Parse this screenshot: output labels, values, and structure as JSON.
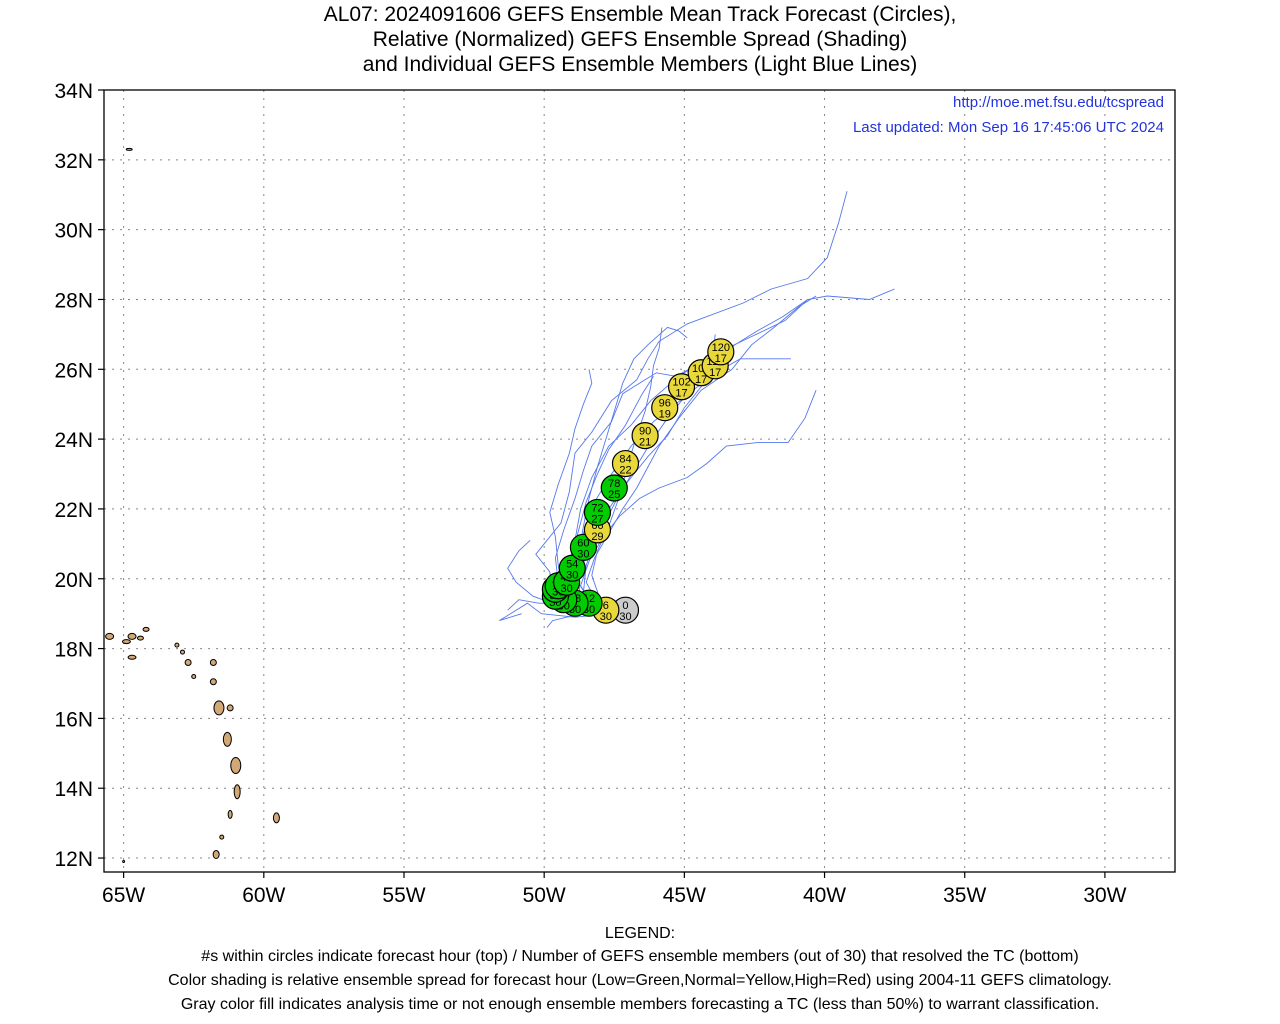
{
  "title": {
    "line1": "AL07: 2024091606 GEFS Ensemble Mean Track Forecast (Circles),",
    "line2": "Relative (Normalized) GEFS Ensemble Spread (Shading)",
    "line3": "and Individual GEFS Ensemble Members (Light Blue Lines)"
  },
  "source": {
    "url": "http://moe.met.fsu.edu/tcspread",
    "updated": "Last updated: Mon Sep 16 17:45:06 UTC 2024"
  },
  "axes": {
    "lon_range": [
      -65.7,
      -27.5
    ],
    "lat_range": [
      11.6,
      34.0
    ],
    "lon_ticks": [
      {
        "value": -65,
        "label": "65W"
      },
      {
        "value": -60,
        "label": "60W"
      },
      {
        "value": -55,
        "label": "55W"
      },
      {
        "value": -50,
        "label": "50W"
      },
      {
        "value": -45,
        "label": "45W"
      },
      {
        "value": -40,
        "label": "40W"
      },
      {
        "value": -35,
        "label": "35W"
      },
      {
        "value": -30,
        "label": "30W"
      }
    ],
    "lat_ticks": [
      {
        "value": 34,
        "label": "34N"
      },
      {
        "value": 32,
        "label": "32N"
      },
      {
        "value": 30,
        "label": "30N"
      },
      {
        "value": 28,
        "label": "28N"
      },
      {
        "value": 26,
        "label": "26N"
      },
      {
        "value": 24,
        "label": "24N"
      },
      {
        "value": 22,
        "label": "22N"
      },
      {
        "value": 20,
        "label": "20N"
      },
      {
        "value": 18,
        "label": "18N"
      },
      {
        "value": 16,
        "label": "16N"
      },
      {
        "value": 14,
        "label": "14N"
      },
      {
        "value": 12,
        "label": "12N"
      }
    ],
    "grid": "dotted"
  },
  "colors": {
    "low": "#00cc00",
    "normal": "#e8d83a",
    "gray": "#cccccc",
    "member_line": "#5577ee",
    "land": "#d2a877",
    "url_text": "#2233dd"
  },
  "mean_track": [
    {
      "hour": "0",
      "members": "30",
      "lon": -47.1,
      "lat": 19.1,
      "spread": "gray"
    },
    {
      "hour": "6",
      "members": "30",
      "lon": -47.8,
      "lat": 19.1,
      "spread": "normal"
    },
    {
      "hour": "12",
      "members": "30",
      "lon": -48.4,
      "lat": 19.3,
      "spread": "low"
    },
    {
      "hour": "18",
      "members": "30",
      "lon": -48.9,
      "lat": 19.3,
      "spread": "low"
    },
    {
      "hour": "24",
      "members": "30",
      "lon": -49.3,
      "lat": 19.4,
      "spread": "low"
    },
    {
      "hour": "30",
      "members": "30",
      "lon": -49.6,
      "lat": 19.5,
      "spread": "low"
    },
    {
      "hour": "36",
      "members": "30",
      "lon": -49.6,
      "lat": 19.7,
      "spread": "low"
    },
    {
      "hour": "42",
      "members": "30",
      "lon": -49.5,
      "lat": 19.8,
      "spread": "low"
    },
    {
      "hour": "48",
      "members": "30",
      "lon": -49.2,
      "lat": 19.9,
      "spread": "low"
    },
    {
      "hour": "54",
      "members": "30",
      "lon": -49.0,
      "lat": 20.3,
      "spread": "low"
    },
    {
      "hour": "60",
      "members": "30",
      "lon": -48.6,
      "lat": 20.9,
      "spread": "low"
    },
    {
      "hour": "66",
      "members": "29",
      "lon": -48.1,
      "lat": 21.4,
      "spread": "normal"
    },
    {
      "hour": "72",
      "members": "27",
      "lon": -48.1,
      "lat": 21.9,
      "spread": "low"
    },
    {
      "hour": "78",
      "members": "25",
      "lon": -47.5,
      "lat": 22.6,
      "spread": "low"
    },
    {
      "hour": "84",
      "members": "22",
      "lon": -47.1,
      "lat": 23.3,
      "spread": "normal"
    },
    {
      "hour": "90",
      "members": "21",
      "lon": -46.4,
      "lat": 24.1,
      "spread": "normal"
    },
    {
      "hour": "96",
      "members": "19",
      "lon": -45.7,
      "lat": 24.9,
      "spread": "normal"
    },
    {
      "hour": "102",
      "members": "17",
      "lon": -45.1,
      "lat": 25.5,
      "spread": "normal"
    },
    {
      "hour": "108",
      "members": "17",
      "lon": -44.4,
      "lat": 25.9,
      "spread": "normal"
    },
    {
      "hour": "114",
      "members": "17",
      "lon": -43.9,
      "lat": 26.1,
      "spread": "normal"
    },
    {
      "hour": "120",
      "members": "17",
      "lon": -43.7,
      "lat": 26.5,
      "spread": "normal"
    }
  ],
  "members": [
    [
      [
        -47.6,
        19.0
      ],
      [
        -48.8,
        19.0
      ],
      [
        -49.7,
        19.5
      ],
      [
        -49.8,
        20.2
      ],
      [
        -50.3,
        20.7
      ],
      [
        -50.0,
        21.0
      ],
      [
        -49.4,
        21.6
      ],
      [
        -49.1,
        22.5
      ],
      [
        -48.9,
        23.6
      ],
      [
        -48.3,
        24.2
      ],
      [
        -47.6,
        25.1
      ],
      [
        -46.7,
        25.7
      ],
      [
        -46.3,
        26.3
      ],
      [
        -45.9,
        26.8
      ],
      [
        -44.9,
        27.3
      ],
      [
        -42.9,
        27.9
      ],
      [
        -41.9,
        28.3
      ],
      [
        -40.6,
        28.6
      ],
      [
        -39.9,
        29.2
      ],
      [
        -39.5,
        30.2
      ],
      [
        -39.2,
        31.1
      ]
    ],
    [
      [
        -47.6,
        19.0
      ],
      [
        -48.6,
        19.1
      ],
      [
        -49.3,
        19.4
      ],
      [
        -49.2,
        20.2
      ],
      [
        -48.9,
        21.1
      ],
      [
        -48.7,
        22.0
      ],
      [
        -48.3,
        22.9
      ],
      [
        -47.7,
        23.8
      ],
      [
        -46.9,
        24.4
      ],
      [
        -46.2,
        25.1
      ],
      [
        -45.2,
        25.8
      ],
      [
        -44.0,
        26.4
      ],
      [
        -42.7,
        26.9
      ],
      [
        -41.4,
        27.4
      ],
      [
        -40.6,
        28.0
      ],
      [
        -39.9,
        28.1
      ],
      [
        -38.4,
        28.0
      ],
      [
        -37.5,
        28.3
      ]
    ],
    [
      [
        -47.6,
        19.0
      ],
      [
        -48.4,
        19.2
      ],
      [
        -48.9,
        19.7
      ],
      [
        -48.9,
        20.4
      ],
      [
        -48.6,
        21.3
      ],
      [
        -48.2,
        22.2
      ],
      [
        -47.6,
        23.0
      ],
      [
        -46.9,
        23.8
      ],
      [
        -46.1,
        24.5
      ],
      [
        -45.0,
        25.2
      ],
      [
        -43.9,
        25.9
      ],
      [
        -43.0,
        26.3
      ],
      [
        -41.9,
        26.3
      ],
      [
        -41.2,
        26.3
      ]
    ],
    [
      [
        -47.6,
        19.0
      ],
      [
        -48.2,
        19.2
      ],
      [
        -48.7,
        19.8
      ],
      [
        -48.4,
        20.5
      ],
      [
        -47.9,
        21.2
      ],
      [
        -47.3,
        21.8
      ],
      [
        -46.6,
        22.3
      ],
      [
        -45.9,
        22.6
      ],
      [
        -44.9,
        22.9
      ],
      [
        -44.2,
        23.3
      ],
      [
        -43.5,
        23.8
      ],
      [
        -42.4,
        23.9
      ],
      [
        -41.3,
        23.9
      ],
      [
        -40.7,
        24.6
      ],
      [
        -40.3,
        25.4
      ]
    ],
    [
      [
        -47.6,
        19.0
      ],
      [
        -48.1,
        19.3
      ],
      [
        -48.5,
        19.9
      ],
      [
        -48.2,
        20.6
      ],
      [
        -47.7,
        21.3
      ],
      [
        -47.2,
        22.0
      ],
      [
        -46.7,
        22.6
      ],
      [
        -46.3,
        23.2
      ],
      [
        -45.9,
        23.8
      ],
      [
        -45.2,
        24.6
      ],
      [
        -44.4,
        25.4
      ],
      [
        -43.3,
        26.0
      ],
      [
        -42.6,
        26.7
      ],
      [
        -41.8,
        27.2
      ],
      [
        -40.9,
        27.8
      ],
      [
        -40.3,
        28.1
      ]
    ],
    [
      [
        -47.6,
        19.0
      ],
      [
        -48.4,
        19.1
      ],
      [
        -49.1,
        19.3
      ],
      [
        -49.5,
        19.9
      ],
      [
        -49.6,
        20.6
      ],
      [
        -49.3,
        21.4
      ],
      [
        -48.9,
        22.3
      ],
      [
        -48.6,
        23.1
      ],
      [
        -48.3,
        23.8
      ],
      [
        -47.6,
        24.5
      ],
      [
        -47.2,
        25.3
      ],
      [
        -46.6,
        25.6
      ],
      [
        -46.0,
        25.9
      ],
      [
        -45.3,
        25.8
      ],
      [
        -44.6,
        26.1
      ]
    ],
    [
      [
        -47.6,
        19.0
      ],
      [
        -48.9,
        18.9
      ],
      [
        -50.1,
        19.0
      ],
      [
        -50.6,
        19.3
      ],
      [
        -51.2,
        19.0
      ],
      [
        -51.6,
        18.8
      ],
      [
        -50.8,
        19.0
      ]
    ],
    [
      [
        -47.6,
        19.0
      ],
      [
        -48.4,
        19.0
      ],
      [
        -49.0,
        19.1
      ],
      [
        -49.6,
        19.3
      ],
      [
        -50.2,
        19.3
      ],
      [
        -50.9,
        19.4
      ],
      [
        -51.3,
        19.1
      ]
    ],
    [
      [
        -47.6,
        19.0
      ],
      [
        -48.3,
        19.3
      ],
      [
        -48.8,
        19.9
      ],
      [
        -48.8,
        20.6
      ],
      [
        -48.6,
        21.5
      ],
      [
        -48.4,
        22.3
      ],
      [
        -48.1,
        23.2
      ],
      [
        -47.8,
        24.0
      ],
      [
        -47.5,
        24.8
      ],
      [
        -47.2,
        25.6
      ],
      [
        -46.8,
        26.3
      ],
      [
        -46.3,
        26.7
      ],
      [
        -45.6,
        27.2
      ],
      [
        -45.2,
        27.1
      ],
      [
        -44.9,
        26.9
      ]
    ],
    [
      [
        -47.6,
        19.0
      ],
      [
        -48.3,
        19.1
      ],
      [
        -48.7,
        19.4
      ],
      [
        -48.8,
        20.1
      ],
      [
        -48.4,
        20.8
      ],
      [
        -47.9,
        21.5
      ],
      [
        -47.4,
        22.3
      ],
      [
        -46.8,
        23.1
      ],
      [
        -46.2,
        23.9
      ],
      [
        -45.6,
        24.6
      ],
      [
        -44.8,
        25.4
      ],
      [
        -43.9,
        26.2
      ],
      [
        -43.2,
        26.7
      ],
      [
        -42.4,
        27.1
      ],
      [
        -41.5,
        27.5
      ],
      [
        -40.6,
        28.0
      ]
    ],
    [
      [
        -47.6,
        19.0
      ],
      [
        -48.0,
        19.4
      ],
      [
        -48.3,
        20.1
      ],
      [
        -48.1,
        20.8
      ],
      [
        -47.7,
        21.5
      ],
      [
        -47.3,
        22.4
      ],
      [
        -47.0,
        23.3
      ],
      [
        -46.7,
        24.1
      ],
      [
        -46.4,
        24.8
      ],
      [
        -46.2,
        25.5
      ],
      [
        -46.1,
        26.1
      ],
      [
        -45.9,
        26.6
      ],
      [
        -45.8,
        27.2
      ]
    ],
    [
      [
        -47.6,
        19.0
      ],
      [
        -48.5,
        19.1
      ],
      [
        -49.3,
        19.6
      ],
      [
        -49.5,
        20.4
      ],
      [
        -49.6,
        21.2
      ],
      [
        -49.8,
        21.9
      ],
      [
        -49.5,
        22.7
      ],
      [
        -49.1,
        23.6
      ],
      [
        -48.9,
        24.3
      ],
      [
        -48.6,
        25.0
      ],
      [
        -48.3,
        25.6
      ],
      [
        -48.4,
        26.0
      ]
    ],
    [
      [
        -47.6,
        19.0
      ],
      [
        -48.6,
        19.0
      ],
      [
        -49.7,
        19.3
      ],
      [
        -50.4,
        19.5
      ],
      [
        -51.0,
        19.9
      ],
      [
        -51.3,
        20.3
      ],
      [
        -50.9,
        20.8
      ],
      [
        -50.5,
        21.1
      ]
    ],
    [
      [
        -47.6,
        19.0
      ],
      [
        -48.2,
        19.1
      ],
      [
        -48.6,
        19.6
      ],
      [
        -48.5,
        20.4
      ],
      [
        -48.1,
        21.2
      ],
      [
        -47.7,
        22.0
      ],
      [
        -47.0,
        22.8
      ],
      [
        -46.3,
        23.5
      ],
      [
        -45.6,
        24.1
      ],
      [
        -45.0,
        24.9
      ],
      [
        -44.4,
        25.5
      ],
      [
        -44.0,
        26.3
      ],
      [
        -43.9,
        27.0
      ]
    ],
    [
      [
        -47.6,
        19.0
      ],
      [
        -48.3,
        19.2
      ],
      [
        -48.9,
        19.6
      ],
      [
        -49.0,
        20.5
      ],
      [
        -48.8,
        21.3
      ],
      [
        -48.5,
        22.2
      ],
      [
        -48.1,
        23.0
      ],
      [
        -47.7,
        23.7
      ],
      [
        -47.1,
        24.4
      ],
      [
        -46.5,
        25.3
      ],
      [
        -46.1,
        25.8
      ]
    ],
    [
      [
        -47.6,
        19.0
      ],
      [
        -48.5,
        19.0
      ],
      [
        -49.2,
        18.9
      ],
      [
        -49.7,
        18.8
      ],
      [
        -49.9,
        18.6
      ]
    ]
  ],
  "legend": {
    "heading": "LEGEND:",
    "line1": "#s within circles indicate forecast hour (top) / Number of GEFS ensemble members (out of 30) that resolved the TC (bottom)",
    "line2": "Color shading is relative ensemble spread for forecast hour (Low=Green,Normal=Yellow,High=Red) using 2004-11 GEFS climatology.",
    "line3": "Gray color fill indicates analysis time or not enough ensemble members forecasting a TC (less than 50%) to warrant classification."
  }
}
